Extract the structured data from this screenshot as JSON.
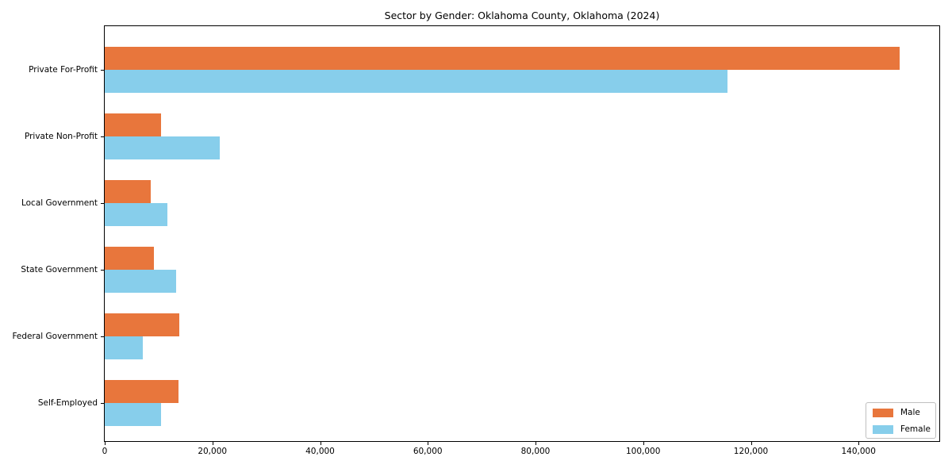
{
  "chart_data": {
    "type": "bar",
    "orientation": "horizontal",
    "title": "Sector by Gender: Oklahoma County, Oklahoma (2024)",
    "categories": [
      "Private For-Profit",
      "Private Non-Profit",
      "Local Government",
      "State Government",
      "Federal Government",
      "Self-Employed"
    ],
    "series": [
      {
        "name": "Male",
        "color": "#E8763C",
        "values": [
          147600,
          10400,
          8500,
          9200,
          13800,
          13700
        ]
      },
      {
        "name": "Female",
        "color": "#87CEEB",
        "values": [
          115700,
          21300,
          11600,
          13200,
          7000,
          10500
        ]
      }
    ],
    "xlabel": "",
    "ylabel": "",
    "xlim": [
      0,
      155000
    ],
    "x_ticks": [
      0,
      20000,
      40000,
      60000,
      80000,
      100000,
      120000,
      140000
    ],
    "x_tick_labels": [
      "0",
      "20,000",
      "40,000",
      "60,000",
      "80,000",
      "100,000",
      "120,000",
      "140,000"
    ],
    "grid": false,
    "legend_position": "lower right"
  }
}
